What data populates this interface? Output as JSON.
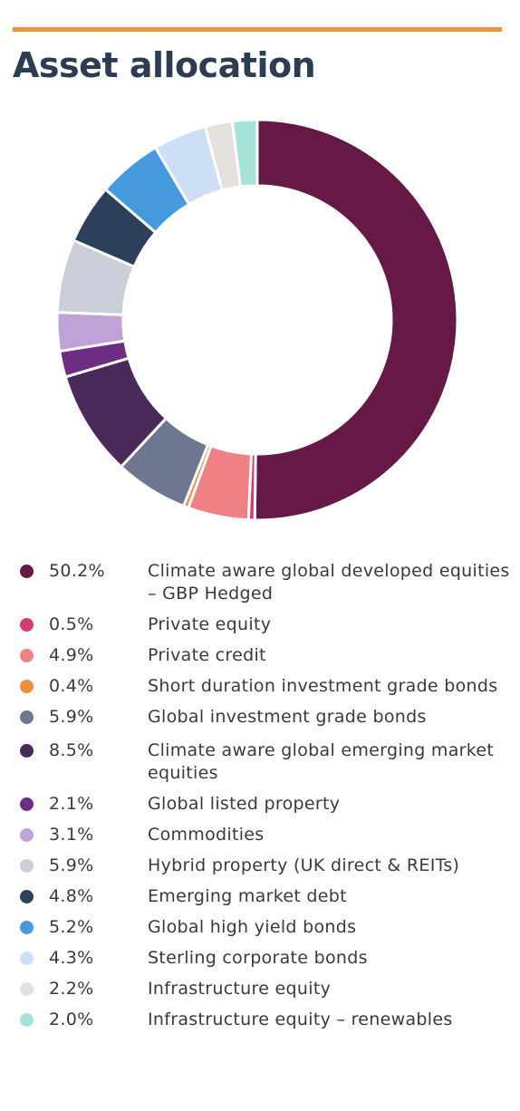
{
  "header": {
    "title": "Asset allocation"
  },
  "accent_color": "#ef8f3a",
  "chart_data": {
    "type": "pie",
    "style": "donut",
    "title": "",
    "slices": [
      {
        "label": "Climate aware global developed equities – GBP Hedged",
        "percent_text": "50.2%",
        "value": 50.2,
        "color": "#661846"
      },
      {
        "label": "Private equity",
        "percent_text": "0.5%",
        "value": 0.5,
        "color": "#d63a72"
      },
      {
        "label": "Private credit",
        "percent_text": "4.9%",
        "value": 4.9,
        "color": "#ef8184"
      },
      {
        "label": "Short duration investment grade bonds",
        "percent_text": "0.4%",
        "value": 0.4,
        "color": "#ef8f3a"
      },
      {
        "label": "Global investment grade bonds",
        "percent_text": "5.9%",
        "value": 5.9,
        "color": "#6f7690"
      },
      {
        "label": "Climate aware global emerging market equities",
        "percent_text": "8.5%",
        "value": 8.5,
        "color": "#4a2a5a"
      },
      {
        "label": "Global listed property",
        "percent_text": "2.1%",
        "value": 2.1,
        "color": "#6c2d82"
      },
      {
        "label": "Commodities",
        "percent_text": "3.1%",
        "value": 3.1,
        "color": "#bfa3d8"
      },
      {
        "label": "Hybrid property (UK direct & REITs)",
        "percent_text": "5.9%",
        "value": 5.9,
        "color": "#c9ced9"
      },
      {
        "label": "Emerging market debt",
        "percent_text": "4.8%",
        "value": 4.8,
        "color": "#2c4159"
      },
      {
        "label": "Global high yield bonds",
        "percent_text": "5.2%",
        "value": 5.2,
        "color": "#449adb"
      },
      {
        "label": "Sterling corporate bonds",
        "percent_text": "4.3%",
        "value": 4.3,
        "color": "#cddff7"
      },
      {
        "label": "Infrastructure equity",
        "percent_text": "2.2%",
        "value": 2.2,
        "color": "#e4e1dc"
      },
      {
        "label": "Infrastructure equity – renewables",
        "percent_text": "2.0%",
        "value": 2.0,
        "color": "#a5e3da"
      }
    ],
    "legend_position": "bottom"
  }
}
